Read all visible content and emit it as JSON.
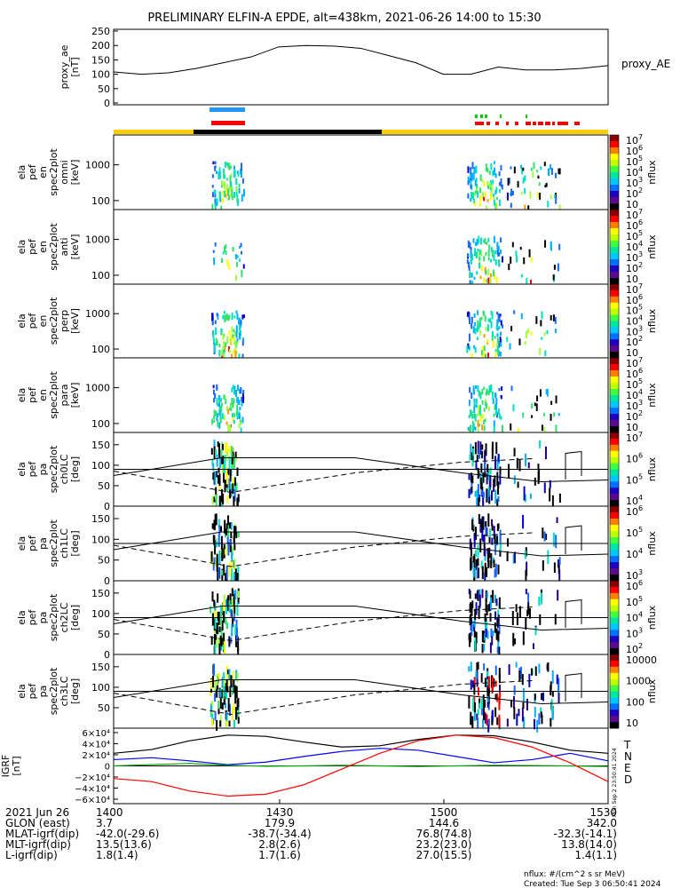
{
  "title": "PRELIMINARY ELFIN-A EPDE, alt=438km, 2021-06-26 14:00 to 15:30",
  "chart_data": [
    {
      "type": "line",
      "panel": "proxy_ae",
      "ylabel": [
        "proxy_ae",
        "[nT]"
      ],
      "legend": "proxy_AE",
      "ylim": [
        0,
        250
      ],
      "yticks": [
        0,
        50,
        100,
        150,
        200,
        250
      ],
      "x": [
        "14:00",
        "14:05",
        "14:10",
        "14:15",
        "14:20",
        "14:25",
        "14:30",
        "14:35",
        "14:40",
        "14:45",
        "14:50",
        "14:55",
        "15:00",
        "15:05",
        "15:10",
        "15:15",
        "15:20",
        "15:25",
        "15:30"
      ],
      "values": [
        108,
        100,
        105,
        120,
        140,
        160,
        195,
        200,
        198,
        190,
        165,
        140,
        100,
        100,
        125,
        115,
        115,
        120,
        130
      ]
    },
    {
      "type": "heatmap",
      "panel": "omni",
      "ylabel": [
        "ela",
        "pef",
        "en",
        "spec2plot",
        "omni",
        "[keV]"
      ],
      "yticks": [
        "100",
        "1000"
      ],
      "colorbar": {
        "label": "nflux",
        "ticks": [
          "10^7",
          "10^6",
          "10^5",
          "10^4",
          "10^3",
          "10^2",
          "10"
        ]
      }
    },
    {
      "type": "heatmap",
      "panel": "anti",
      "ylabel": [
        "ela",
        "pef",
        "en",
        "spec2plot",
        "anti",
        "[keV]"
      ],
      "yticks": [
        "100",
        "1000"
      ],
      "colorbar": {
        "label": "nflux",
        "ticks": [
          "10^7",
          "10^6",
          "10^5",
          "10^4",
          "10^3",
          "10^2",
          "10"
        ]
      }
    },
    {
      "type": "heatmap",
      "panel": "perp",
      "ylabel": [
        "ela",
        "pef",
        "en",
        "spec2plot",
        "perp",
        "[keV]"
      ],
      "yticks": [
        "100",
        "1000"
      ],
      "colorbar": {
        "label": "nflux",
        "ticks": [
          "10^7",
          "10^6",
          "10^5",
          "10^4",
          "10^3",
          "10^2",
          "10"
        ]
      }
    },
    {
      "type": "heatmap",
      "panel": "para",
      "ylabel": [
        "ela",
        "pef",
        "en",
        "spec2plot",
        "para",
        "[keV]"
      ],
      "yticks": [
        "100",
        "1000"
      ],
      "colorbar": {
        "label": "nflux",
        "ticks": [
          "10^7",
          "10^6",
          "10^5",
          "10^4",
          "10^3",
          "10^2",
          "10"
        ]
      }
    },
    {
      "type": "heatmap",
      "panel": "ch0LC",
      "ylabel": [
        "ela",
        "pef",
        "pa",
        "spec2plot",
        "ch0LC",
        "[deg]"
      ],
      "yticks": [
        "0",
        "50",
        "100",
        "150"
      ],
      "colorbar": {
        "label": "nflux",
        "ticks": [
          "10^7",
          "10^6",
          "10^5",
          "10^4"
        ]
      }
    },
    {
      "type": "heatmap",
      "panel": "ch1LC",
      "ylabel": [
        "ela",
        "pef",
        "pa",
        "spec2plot",
        "ch1LC",
        "[deg]"
      ],
      "yticks": [
        "0",
        "50",
        "100",
        "150"
      ],
      "colorbar": {
        "label": "nflux",
        "ticks": [
          "10^6",
          "10^5",
          "10^4",
          "10^3"
        ]
      }
    },
    {
      "type": "heatmap",
      "panel": "ch2LC",
      "ylabel": [
        "ela",
        "pef",
        "pa",
        "spec2plot",
        "ch2LC",
        "[deg]"
      ],
      "yticks": [
        "0",
        "50",
        "100",
        "150"
      ],
      "colorbar": {
        "label": "nflux",
        "ticks": [
          "10^6",
          "10^5",
          "10^4",
          "10^3",
          "10^2"
        ]
      }
    },
    {
      "type": "heatmap",
      "panel": "ch3LC",
      "ylabel": [
        "ela",
        "pef",
        "pa",
        "spec2plot",
        "ch3LC",
        "[deg]"
      ],
      "yticks": [
        "50",
        "100",
        "150"
      ],
      "colorbar": {
        "label": "nflux",
        "ticks": [
          "10000",
          "1000",
          "100",
          "10"
        ]
      }
    },
    {
      "type": "line",
      "panel": "IGRF",
      "ylabel": [
        "IGRF",
        "[nT]"
      ],
      "ylim": [
        -60000,
        60000
      ],
      "yticks": [
        "6×10⁴",
        "4×10⁴",
        "2×10⁴",
        "0",
        "−2×10⁴",
        "−4×10⁴",
        "−6×10⁴"
      ],
      "series": [
        {
          "name": "T",
          "color": "#000000",
          "values": [
            20000,
            26000,
            40000,
            49000,
            47000,
            38000,
            30000,
            32000,
            42000,
            49000,
            48000,
            38000,
            25000,
            20000
          ]
        },
        {
          "name": "N",
          "color": "#0000ff",
          "values": [
            10000,
            13000,
            8000,
            2000,
            6000,
            15000,
            23000,
            28000,
            25000,
            15000,
            5000,
            10000,
            20000,
            8000
          ]
        },
        {
          "name": "E",
          "color": "#00aa00",
          "values": [
            0,
            2000,
            4000,
            1000,
            -500,
            0,
            1000,
            0,
            -1000,
            0,
            1000,
            500,
            0,
            -1000
          ]
        },
        {
          "name": "D",
          "color": "#ff0000",
          "values": [
            -20000,
            -25000,
            -40000,
            -48000,
            -45000,
            -30000,
            -5000,
            20000,
            40000,
            49000,
            45000,
            30000,
            5000,
            -25000
          ]
        }
      ]
    }
  ],
  "xaxis": {
    "rows": [
      {
        "label": "2021 Jun 26",
        "values": [
          "1400",
          "1430",
          "1500",
          "1530"
        ]
      },
      {
        "label": "GLON (east)",
        "values": [
          "3.7",
          "179.9",
          "144.6",
          "342.0"
        ]
      },
      {
        "label": "MLAT-igrf(dip)",
        "values": [
          "-42.0(-29.6)",
          "-38.7(-34.4)",
          "76.8(74.8)",
          "-32.3(-14.1)"
        ]
      },
      {
        "label": "MLT-igrf(dip)",
        "values": [
          "13.5(13.6)",
          "2.8(2.6)",
          "23.2(23.0)",
          "13.8(14.0)"
        ]
      },
      {
        "label": "L-igrf(dip)",
        "values": [
          "1.8(1.4)",
          "1.7(1.6)",
          "27.0(15.5)",
          "1.4(1.1)"
        ]
      }
    ]
  },
  "side_stamp": "Mon Sep 2 23:50:41 2024",
  "footer": {
    "units": "nflux: #/(cm^2 s sr MeV)",
    "created": "Created: Tue Sep  3 06:50:41 2024"
  }
}
